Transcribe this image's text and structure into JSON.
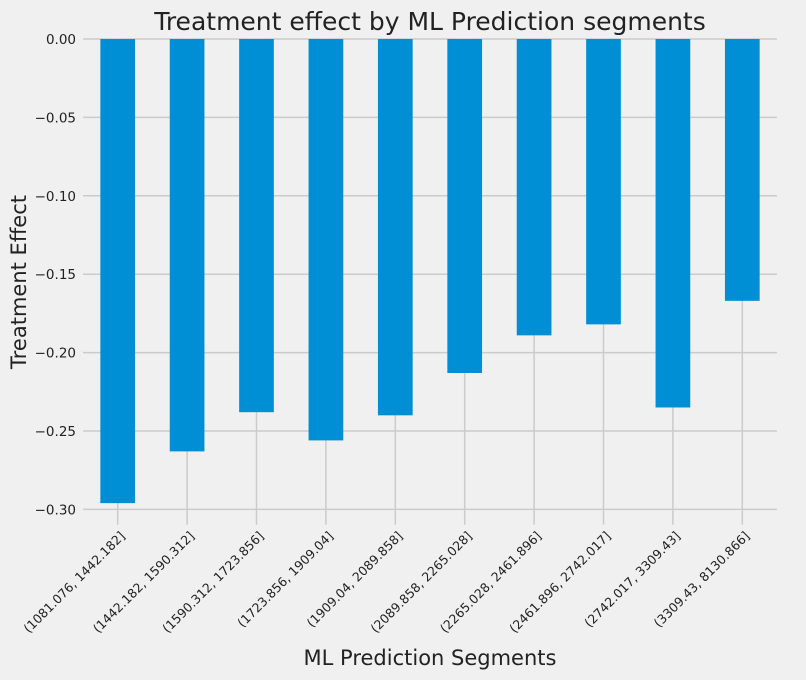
{
  "chart_data": {
    "type": "bar",
    "title": "Treatment effect by ML Prediction segments",
    "xlabel": "ML Prediction Segments",
    "ylabel": "Treatment Effect",
    "categories": [
      "(1081.076, 1442.182]",
      "(1442.182, 1590.312]",
      "(1590.312, 1723.856]",
      "(1723.856, 1909.04]",
      "(1909.04, 2089.858]",
      "(2089.858, 2265.028]",
      "(2265.028, 2461.896]",
      "(2461.896, 2742.017]",
      "(2742.017, 3309.43]",
      "(3309.43, 8130.866]"
    ],
    "values": [
      -0.296,
      -0.263,
      -0.238,
      -0.256,
      -0.24,
      -0.213,
      -0.189,
      -0.182,
      -0.235,
      -0.167
    ],
    "yticks": [
      "0.00",
      "−0.05",
      "−0.10",
      "−0.15",
      "−0.20",
      "−0.25",
      "−0.30"
    ],
    "ylim": [
      -0.306,
      0.0
    ],
    "grid": true,
    "bar_color": "#008fd5",
    "background_color": "#f0f0f0",
    "grid_color": "#cbcbcb"
  }
}
